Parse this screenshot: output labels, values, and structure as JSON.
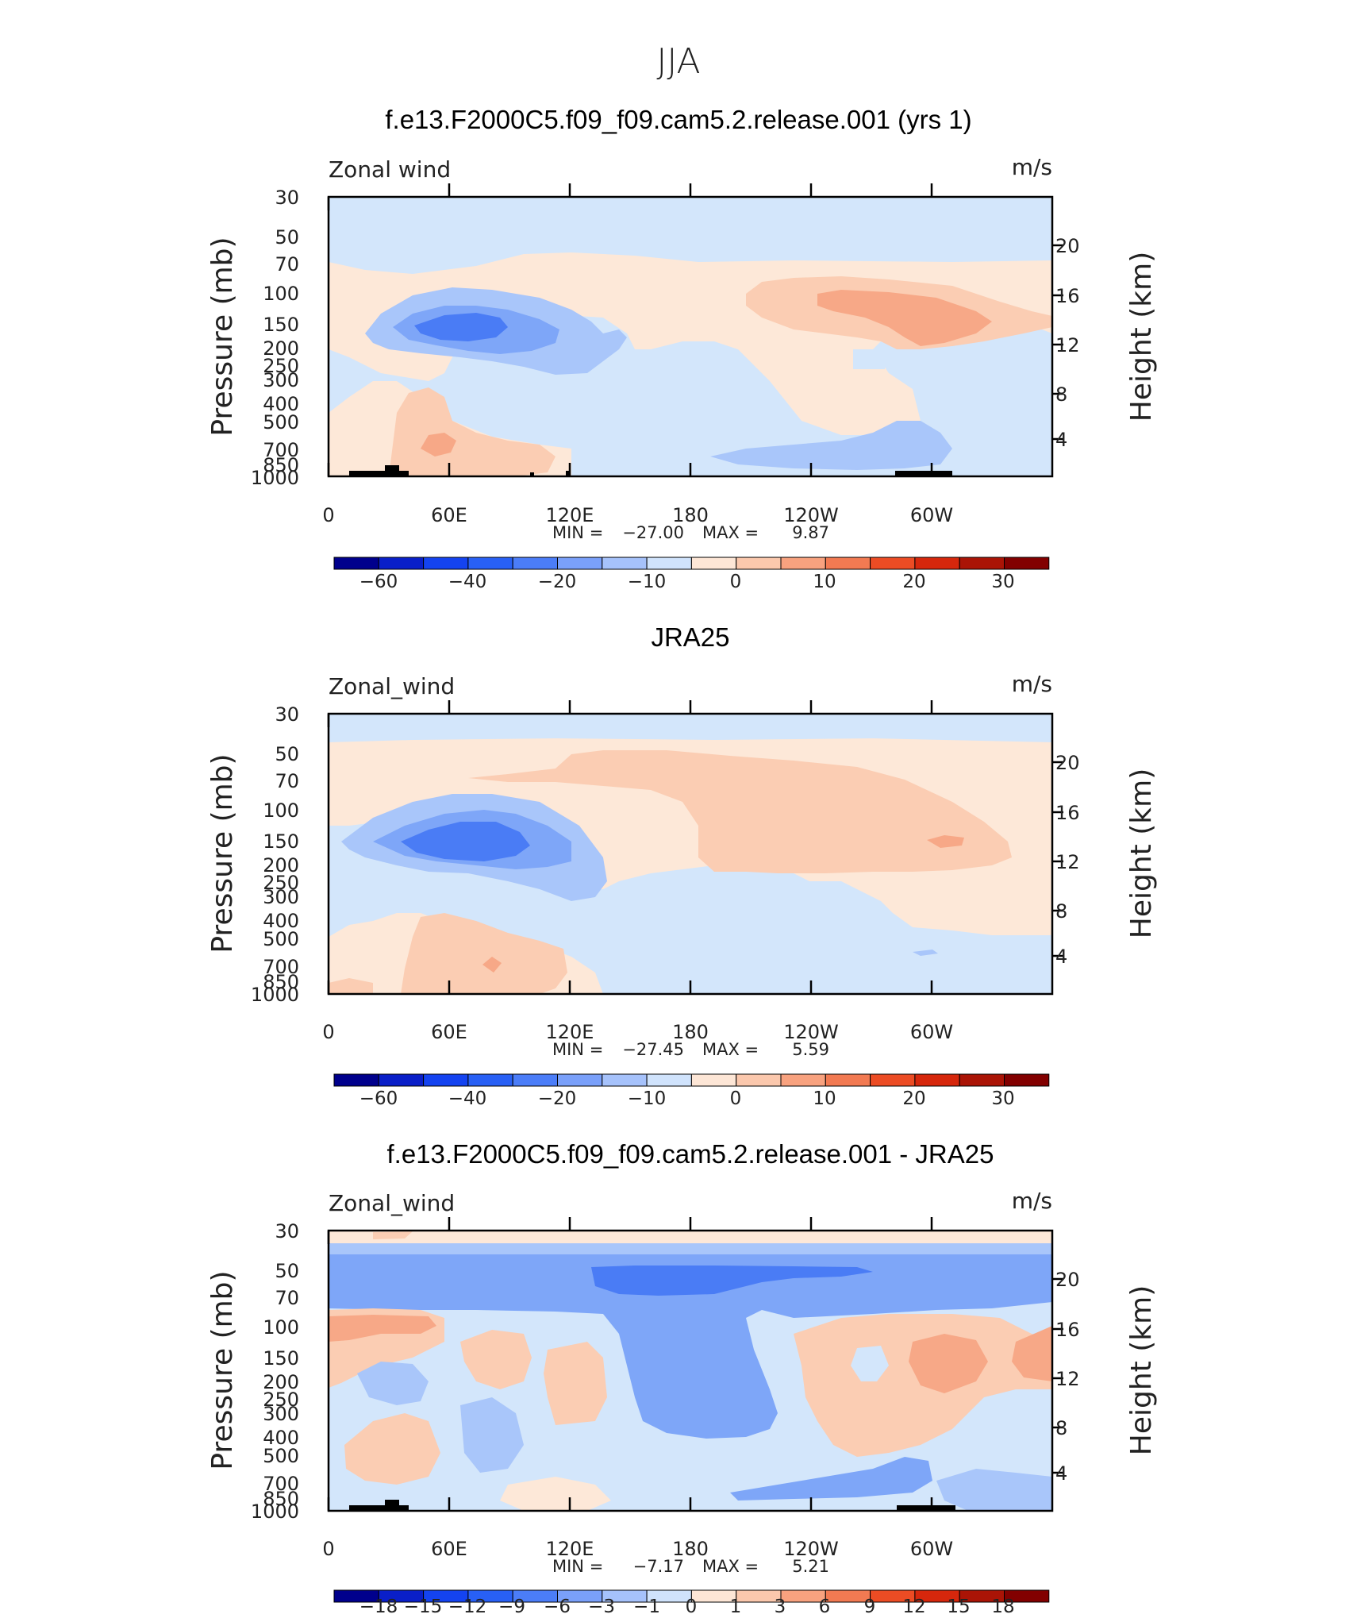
{
  "chart_data": {
    "figure_title": "JJA",
    "panels": [
      {
        "type": "contour",
        "title": "f.e13.F2000C5.f09_f09.cam5.2.release.001 (yrs 1)",
        "variable": "Zonal wind",
        "units": "m/s",
        "ylabel_left": "Pressure  (mb)",
        "ylabel_right": "Height  (km)",
        "x_ticks": [
          "0",
          "60E",
          "120E",
          "180",
          "120W",
          "60W"
        ],
        "y_ticks": [
          "30",
          "50",
          "70",
          "100",
          "150",
          "200",
          "250",
          "300",
          "400",
          "500",
          "700",
          "850",
          "1000"
        ],
        "height_ticks": [
          "20",
          "16",
          "12",
          "8",
          "4"
        ],
        "stats_min_label": "MIN  =",
        "stats_min": "−27.00",
        "stats_max_label": "MAX  =",
        "stats_max": "9.87",
        "colorbar_labels": [
          "−60",
          "−40",
          "−20",
          "−10",
          "0",
          "10",
          "20",
          "30"
        ],
        "colorbar_levels": [
          -70,
          -60,
          -50,
          -40,
          -30,
          -20,
          -15,
          -10,
          -5,
          0,
          5,
          10,
          15,
          20,
          25,
          30
        ]
      },
      {
        "type": "contour",
        "title": "JRA25",
        "variable": "Zonal_wind",
        "units": "m/s",
        "ylabel_left": "Pressure  (mb)",
        "ylabel_right": "Height  (km)",
        "x_ticks": [
          "0",
          "60E",
          "120E",
          "180",
          "120W",
          "60W"
        ],
        "y_ticks": [
          "30",
          "50",
          "70",
          "100",
          "150",
          "200",
          "250",
          "300",
          "400",
          "500",
          "700",
          "850",
          "1000"
        ],
        "height_ticks": [
          "20",
          "16",
          "12",
          "8",
          "4"
        ],
        "stats_min_label": "MIN  =",
        "stats_min": "−27.45",
        "stats_max_label": "MAX  =",
        "stats_max": "5.59",
        "colorbar_labels": [
          "−60",
          "−40",
          "−20",
          "−10",
          "0",
          "10",
          "20",
          "30"
        ],
        "colorbar_levels": [
          -70,
          -60,
          -50,
          -40,
          -30,
          -20,
          -15,
          -10,
          -5,
          0,
          5,
          10,
          15,
          20,
          25,
          30
        ]
      },
      {
        "type": "contour",
        "title": "f.e13.F2000C5.f09_f09.cam5.2.release.001 - JRA25",
        "variable": "Zonal_wind",
        "units": "m/s",
        "ylabel_left": "Pressure  (mb)",
        "ylabel_right": "Height  (km)",
        "x_ticks": [
          "0",
          "60E",
          "120E",
          "180",
          "120W",
          "60W"
        ],
        "y_ticks": [
          "30",
          "50",
          "70",
          "100",
          "150",
          "200",
          "250",
          "300",
          "400",
          "500",
          "700",
          "850",
          "1000"
        ],
        "height_ticks": [
          "20",
          "16",
          "12",
          "8",
          "4"
        ],
        "stats_min_label": "MIN  =",
        "stats_min": "−7.17",
        "stats_max_label": "MAX  =",
        "stats_max": "5.21",
        "colorbar_labels": [
          "−18",
          "−15",
          "−12",
          "−9",
          "−6",
          "−3",
          "−1",
          "0",
          "1",
          "3",
          "6",
          "9",
          "12",
          "15",
          "18"
        ],
        "colorbar_levels": [
          -18,
          -15,
          -12,
          -9,
          -6,
          -3,
          -1,
          0,
          1,
          3,
          6,
          9,
          12,
          15,
          18
        ]
      }
    ],
    "colormap": [
      "#00008c",
      "#0a1fc8",
      "#1443f0",
      "#2860f5",
      "#4b7df8",
      "#7aa0fa",
      "#a6c2fb",
      "#d0e3fc",
      "#fde6d6",
      "#fbc8ad",
      "#f8a27f",
      "#f27a52",
      "#ec4c24",
      "#d6270c",
      "#aa1406",
      "#820000"
    ],
    "fill_colors": {
      "blue1": "#d3e6fb",
      "blue2": "#a9c6fa",
      "blue3": "#7ea6f8",
      "blue4": "#4a7cf5",
      "blue5": "#2f63f0",
      "orange1": "#fde8d8",
      "orange2": "#fbcdb3",
      "orange3": "#f7a887"
    }
  }
}
